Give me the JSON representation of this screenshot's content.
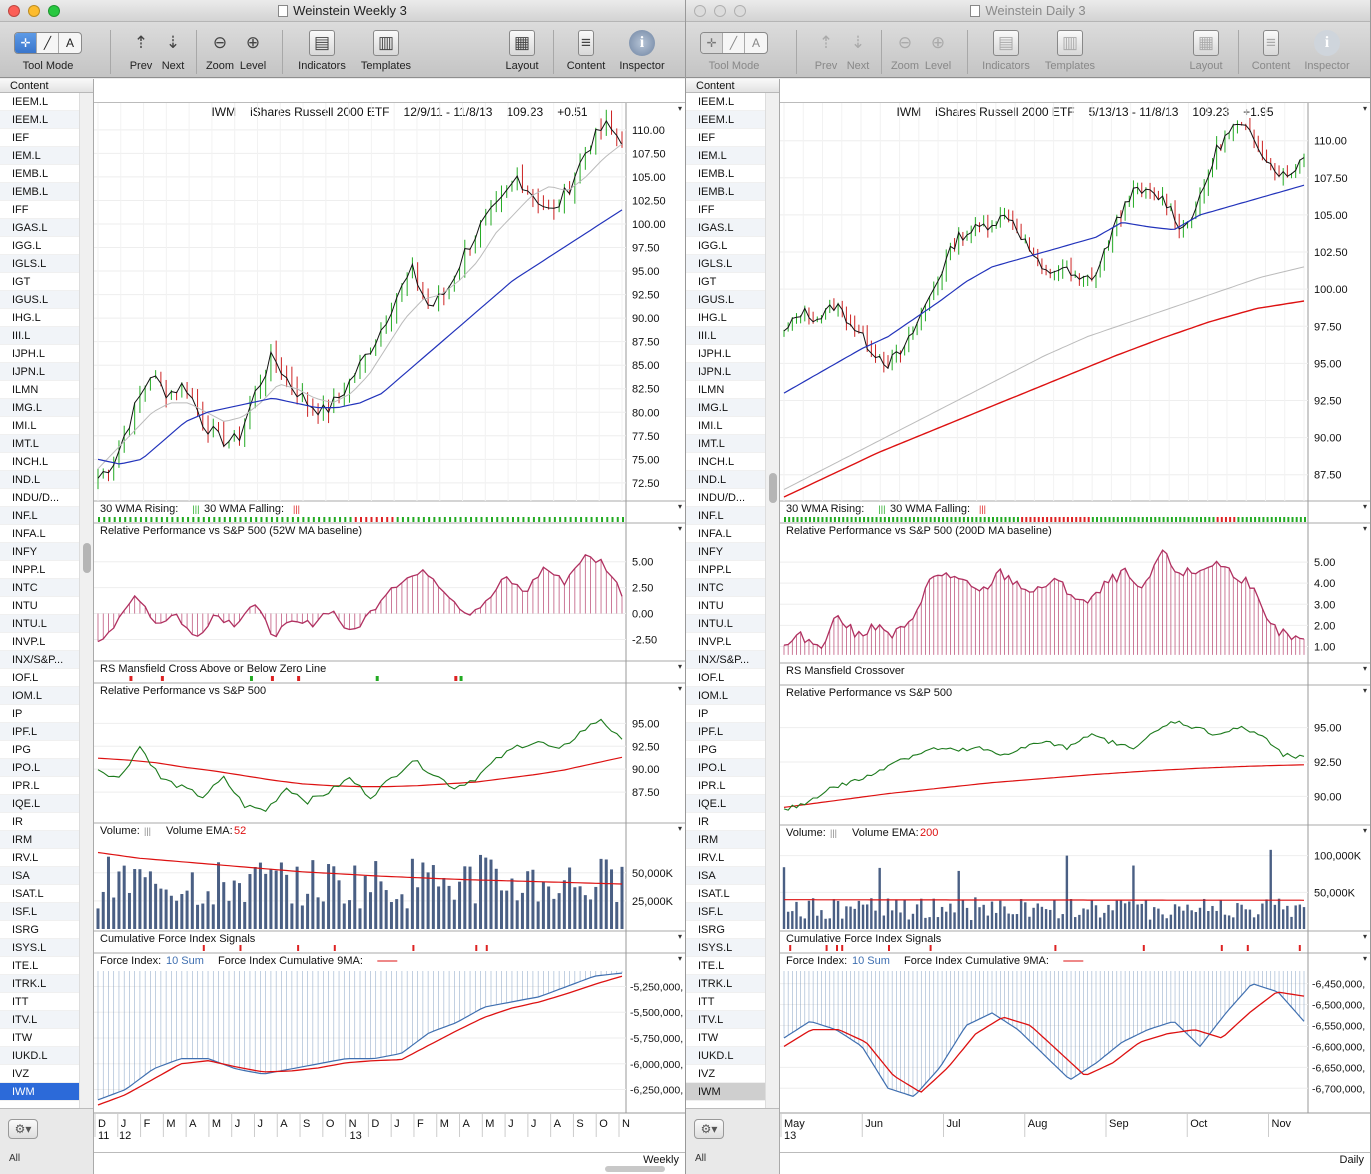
{
  "windows": [
    {
      "id": "left",
      "title": "Weinstein Weekly 3",
      "active": true,
      "toolbar": {
        "tool_mode": "Tool Mode",
        "prev": "Prev",
        "next": "Next",
        "zoom": "Zoom",
        "level": "Level",
        "indicators": "Indicators",
        "templates": "Templates",
        "layout": "Layout",
        "content": "Content",
        "inspector": "Inspector"
      },
      "sidebar": {
        "header": "Content",
        "footer_label": "All",
        "selected": "IWM",
        "items": [
          "IEEM.L",
          "IEEM.L",
          "IEF",
          "IEM.L",
          "IEMB.L",
          "IEMB.L",
          "IFF",
          "IGAS.L",
          "IGG.L",
          "IGLS.L",
          "IGT",
          "IGUS.L",
          "IHG.L",
          "III.L",
          "IJPH.L",
          "IJPN.L",
          "ILMN",
          "IMG.L",
          "IMI.L",
          "IMT.L",
          "INCH.L",
          "IND.L",
          "INDU/D...",
          "INF.L",
          "INFA.L",
          "INFY",
          "INPP.L",
          "INTC",
          "INTU",
          "INTU.L",
          "INVP.L",
          "INX/S&P...",
          "IOF.L",
          "IOM.L",
          "IP",
          "IPF.L",
          "IPG",
          "IPO.L",
          "IPR.L",
          "IQE.L",
          "IR",
          "IRM",
          "IRV.L",
          "ISA",
          "ISAT.L",
          "ISF.L",
          "ISRG",
          "ISYS.L",
          "ITE.L",
          "ITRK.L",
          "ITT",
          "ITV.L",
          "ITW",
          "IUKD.L",
          "IVZ",
          "IWM"
        ]
      },
      "chart": {
        "symbol": "IWM",
        "name": "iShares Russell 2000 ETF",
        "range": "12/9/11 - 11/8/13",
        "last": "109.23",
        "change": "+0.51",
        "interval": "Weekly"
      },
      "panels": {
        "price_ticks": [
          "110.00",
          "107.50",
          "105.00",
          "102.50",
          "100.00",
          "97.50",
          "95.00",
          "92.50",
          "90.00",
          "87.50",
          "85.00",
          "82.50",
          "80.00",
          "77.50",
          "75.00",
          "72.50"
        ],
        "wma_label_rising": "30 WMA Rising:",
        "wma_label_falling": "30 WMA Falling:",
        "relperf_ma_label": "Relative Performance vs S&P 500 (52W MA baseline)",
        "relperf_ma_ticks": [
          "5.00",
          "2.50",
          "0.00",
          "-2.50"
        ],
        "rs_cross_label": "RS Mansfield Cross Above or Below Zero Line",
        "relperf_label": "Relative Performance vs S&P 500",
        "relperf_ticks": [
          "95.00",
          "92.50",
          "90.00",
          "87.50"
        ],
        "volume_label": "Volume:",
        "volume_ema_label": "Volume EMA:",
        "volume_ema_value": "52",
        "volume_ticks": [
          "50,000K",
          "25,000K"
        ],
        "cfi_signals_label": "Cumulative Force Index Signals",
        "force_label": "Force Index:",
        "force_sum": "10 Sum",
        "force_cum_label": "Force Index Cumulative 9MA:",
        "force_ticks": [
          "-5,250,000,",
          "-5,500,000,",
          "-5,750,000,",
          "-6,000,000,",
          "-6,250,000,"
        ],
        "x_months": [
          "D",
          "J",
          "F",
          "M",
          "A",
          "M",
          "J",
          "J",
          "A",
          "S",
          "O",
          "N",
          "D",
          "J",
          "F",
          "M",
          "A",
          "M",
          "J",
          "J",
          "A",
          "S",
          "O",
          "N"
        ],
        "x_years": [
          "11",
          "12",
          "13"
        ]
      }
    },
    {
      "id": "right",
      "title": "Weinstein Daily 3",
      "active": false,
      "toolbar": {
        "tool_mode": "Tool Mode",
        "prev": "Prev",
        "next": "Next",
        "zoom": "Zoom",
        "level": "Level",
        "indicators": "Indicators",
        "templates": "Templates",
        "layout": "Layout",
        "content": "Content",
        "inspector": "Inspector"
      },
      "sidebar": {
        "header": "Content",
        "footer_label": "All",
        "selected": "IWM",
        "items": [
          "IEEM.L",
          "IEEM.L",
          "IEF",
          "IEM.L",
          "IEMB.L",
          "IEMB.L",
          "IFF",
          "IGAS.L",
          "IGG.L",
          "IGLS.L",
          "IGT",
          "IGUS.L",
          "IHG.L",
          "III.L",
          "IJPH.L",
          "IJPN.L",
          "ILMN",
          "IMG.L",
          "IMI.L",
          "IMT.L",
          "INCH.L",
          "IND.L",
          "INDU/D...",
          "INF.L",
          "INFA.L",
          "INFY",
          "INPP.L",
          "INTC",
          "INTU",
          "INTU.L",
          "INVP.L",
          "INX/S&P...",
          "IOF.L",
          "IOM.L",
          "IP",
          "IPF.L",
          "IPG",
          "IPO.L",
          "IPR.L",
          "IQE.L",
          "IR",
          "IRM",
          "IRV.L",
          "ISA",
          "ISAT.L",
          "ISF.L",
          "ISRG",
          "ISYS.L",
          "ITE.L",
          "ITRK.L",
          "ITT",
          "ITV.L",
          "ITW",
          "IUKD.L",
          "IVZ",
          "IWM"
        ]
      },
      "chart": {
        "symbol": "IWM",
        "name": "iShares Russell 2000 ETF",
        "range": "5/13/13 - 11/8/13",
        "last": "109.23",
        "change": "+1.95",
        "interval": "Daily"
      },
      "panels": {
        "price_ticks": [
          "110.00",
          "107.50",
          "105.00",
          "102.50",
          "100.00",
          "97.50",
          "95.00",
          "92.50",
          "90.00",
          "87.50"
        ],
        "wma_label_rising": "30 WMA Rising:",
        "wma_label_falling": "30 WMA Falling:",
        "relperf_ma_label": "Relative Performance vs S&P 500 (200D MA baseline)",
        "relperf_ma_ticks": [
          "5.00",
          "4.00",
          "3.00",
          "2.00",
          "1.00"
        ],
        "rs_cross_label": "RS Mansfield Crossover",
        "relperf_label": "Relative Performance vs S&P 500",
        "relperf_ticks": [
          "95.00",
          "92.50",
          "90.00"
        ],
        "volume_label": "Volume:",
        "volume_ema_label": "Volume EMA:",
        "volume_ema_value": "200",
        "volume_ticks": [
          "100,000K",
          "50,000K"
        ],
        "cfi_signals_label": "Cumulative Force Index Signals",
        "force_label": "Force Index:",
        "force_sum": "10 Sum",
        "force_cum_label": "Force Index Cumulative 9MA:",
        "force_ticks": [
          "-6,450,000,",
          "-6,500,000,",
          "-6,550,000,",
          "-6,600,000,",
          "-6,650,000,",
          "-6,700,000,"
        ],
        "x_months": [
          "May",
          "Jun",
          "Jul",
          "Aug",
          "Sep",
          "Oct",
          "Nov"
        ],
        "x_years": [
          "13"
        ]
      }
    }
  ],
  "colors": {
    "rising": "#22aa22",
    "falling": "#dd2222",
    "price_up": "#22aa22",
    "price_down": "#cc2222",
    "ma_blue": "#2233bb",
    "ma_gray": "#bbbbbb",
    "ma_red": "#dd1111",
    "relperf_bars": "#b03060",
    "relperf_line": "#1c7a1c",
    "volume_bars": "#4a5f84",
    "force_bars": "#6e8fb8",
    "force_line": "#3f6fb0",
    "selection": "#2c6ad9"
  }
}
